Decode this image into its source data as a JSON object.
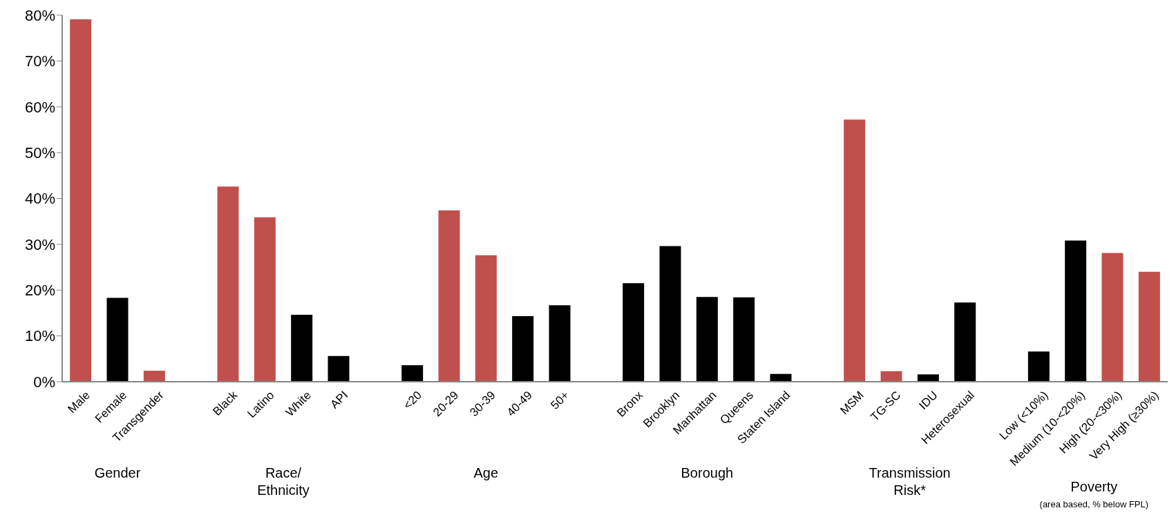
{
  "chart_data": {
    "type": "bar",
    "categories": [
      "Male",
      "Female",
      "Transgender",
      null,
      "Black",
      "Latino",
      "White",
      "API",
      null,
      "<20",
      "20-29",
      "30-39",
      "40-49",
      "50+",
      null,
      "Bronx",
      "Brooklyn",
      "Manhattan",
      "Queens",
      "Staten Island",
      null,
      "MSM",
      "TG-SC",
      "IDU",
      "Heterosexual",
      null,
      "Low (<10%)",
      "Medium (10-<20%)",
      "High (20-<30%)",
      "Very High (≥30%)"
    ],
    "values": [
      79.1,
      18.3,
      2.4,
      null,
      42.6,
      35.9,
      14.6,
      5.6,
      null,
      3.6,
      37.4,
      27.6,
      14.3,
      16.7,
      null,
      21.5,
      29.6,
      18.5,
      18.4,
      1.7,
      null,
      57.2,
      2.3,
      1.6,
      17.3,
      null,
      6.6,
      30.8,
      28.1,
      24.0
    ],
    "colors": [
      "#c0504d",
      "#000000",
      "#c0504d",
      null,
      "#c0504d",
      "#c0504d",
      "#000000",
      "#000000",
      null,
      "#000000",
      "#c0504d",
      "#c0504d",
      "#000000",
      "#000000",
      null,
      "#000000",
      "#000000",
      "#000000",
      "#000000",
      "#000000",
      null,
      "#c0504d",
      "#c0504d",
      "#000000",
      "#000000",
      null,
      "#000000",
      "#000000",
      "#c0504d",
      "#c0504d"
    ],
    "ylim": [
      0,
      80
    ],
    "yticks": [
      {
        "value": 0,
        "label": "0%"
      },
      {
        "value": 10,
        "label": "10%"
      },
      {
        "value": 20,
        "label": "20%"
      },
      {
        "value": 30,
        "label": "30%"
      },
      {
        "value": 40,
        "label": "40%"
      },
      {
        "value": 50,
        "label": "50%"
      },
      {
        "value": 60,
        "label": "60%"
      },
      {
        "value": 70,
        "label": "70%"
      },
      {
        "value": 80,
        "label": "80%"
      }
    ],
    "grid": false,
    "legend": false,
    "annotations": [
      "Gender",
      "Race/\nEthnicity",
      "Age",
      "Borough",
      "Transmission\nRisk*",
      "Poverty",
      "(area based, % below FPL)"
    ]
  }
}
